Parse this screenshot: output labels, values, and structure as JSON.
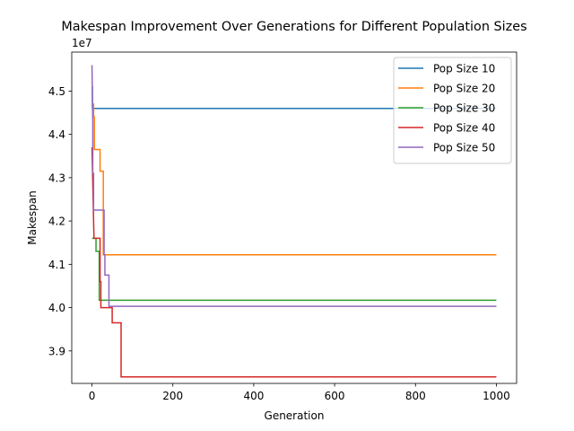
{
  "chart_data": {
    "type": "line",
    "title": "Makespan Improvement Over Generations for Different Population Sizes",
    "xlabel": "Generation",
    "ylabel": "Makespan",
    "y_offset_label": "1e7",
    "xlim": [
      -50,
      1050
    ],
    "ylim": [
      38250000.0,
      45900000.0
    ],
    "x_ticks": [
      0,
      200,
      400,
      600,
      800,
      1000
    ],
    "x_tick_labels": [
      "0",
      "200",
      "400",
      "600",
      "800",
      "1000"
    ],
    "y_ticks": [
      39000000.0,
      40000000.0,
      41000000.0,
      42000000.0,
      43000000.0,
      44000000.0,
      45000000.0
    ],
    "y_tick_labels": [
      "3.9",
      "4.0",
      "4.1",
      "4.2",
      "4.3",
      "4.4",
      "4.5"
    ],
    "grid": false,
    "legend_position": "top-right",
    "series": [
      {
        "name": "Pop Size 10",
        "color": "#1f77b4",
        "points": [
          [
            0,
            45100000.0
          ],
          [
            1,
            45100000.0
          ],
          [
            1,
            44600000.0
          ],
          [
            1000,
            44600000.0
          ]
        ]
      },
      {
        "name": "Pop Size 20",
        "color": "#ff7f0e",
        "points": [
          [
            0,
            44700000.0
          ],
          [
            4,
            44700000.0
          ],
          [
            4,
            44400000.0
          ],
          [
            6,
            44400000.0
          ],
          [
            6,
            43650000.0
          ],
          [
            20,
            43650000.0
          ],
          [
            20,
            43150000.0
          ],
          [
            28,
            43150000.0
          ],
          [
            28,
            41220000.0
          ],
          [
            1000,
            41220000.0
          ]
        ]
      },
      {
        "name": "Pop Size 30",
        "color": "#2ca02c",
        "points": [
          [
            0,
            41600000.0
          ],
          [
            10,
            41600000.0
          ],
          [
            10,
            41300000.0
          ],
          [
            18,
            41300000.0
          ],
          [
            18,
            40170000.0
          ],
          [
            1000,
            40170000.0
          ]
        ]
      },
      {
        "name": "Pop Size 40",
        "color": "#d62728",
        "points": [
          [
            0,
            43700000.0
          ],
          [
            5,
            41600000.0
          ],
          [
            20,
            41600000.0
          ],
          [
            20,
            40600000.0
          ],
          [
            22,
            40600000.0
          ],
          [
            22,
            40000000.0
          ],
          [
            50,
            40000000.0
          ],
          [
            50,
            39650000.0
          ],
          [
            72,
            39650000.0
          ],
          [
            72,
            38400000.0
          ],
          [
            1000,
            38400000.0
          ]
        ]
      },
      {
        "name": "Pop Size 50",
        "color": "#9467bd",
        "points": [
          [
            0,
            45600000.0
          ],
          [
            2,
            44300000.0
          ],
          [
            2,
            43100000.0
          ],
          [
            4,
            43100000.0
          ],
          [
            4,
            42250000.0
          ],
          [
            30,
            42250000.0
          ],
          [
            30,
            41220000.0
          ],
          [
            32,
            41220000.0
          ],
          [
            32,
            40750000.0
          ],
          [
            42,
            40750000.0
          ],
          [
            42,
            40030000.0
          ],
          [
            1000,
            40030000.0
          ]
        ]
      }
    ]
  }
}
